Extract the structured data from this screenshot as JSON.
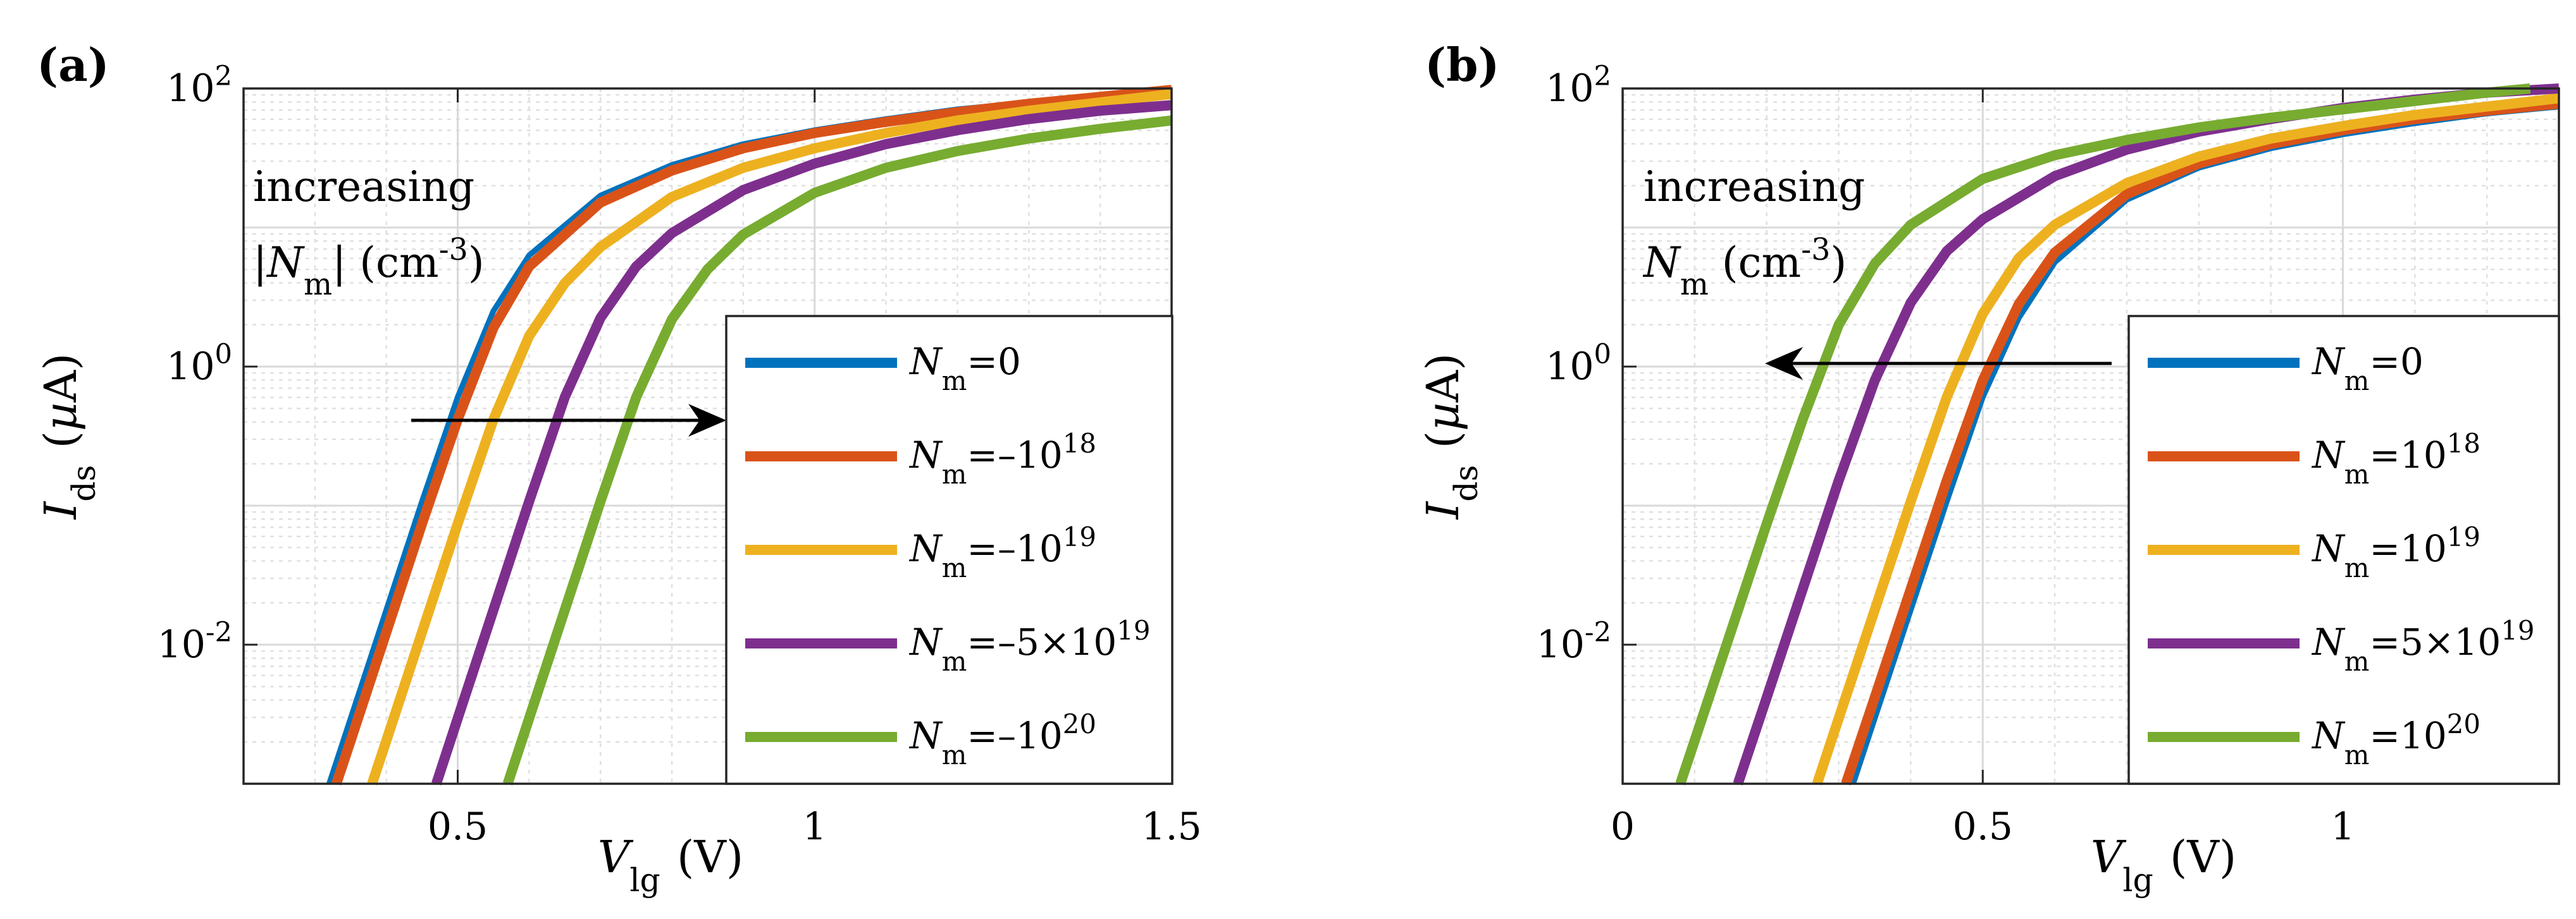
{
  "chart_data": [
    {
      "panel": "(a)",
      "type": "line",
      "title": "",
      "xlabel": "V_lg (V)",
      "ylabel": "I_ds (µA)",
      "xlim": [
        0.2,
        1.5
      ],
      "ylim_log10": [
        -3,
        2
      ],
      "y_scale": "log",
      "x_ticks": [
        0.5,
        1,
        1.5
      ],
      "x_tick_labels": [
        "0.5",
        "1",
        "1.5"
      ],
      "y_ticks_log10": [
        -2,
        0,
        2
      ],
      "grid": "major and minor",
      "legend_position": "bottom-right",
      "annotation": [
        "increasing",
        "|N",
        "m",
        "| (cm",
        "-3",
        ")"
      ],
      "arrow_direction": "right",
      "series": [
        {
          "name": "0",
          "color": "#0072BD",
          "x": [
            0.32,
            0.35,
            0.4,
            0.45,
            0.5,
            0.55,
            0.6,
            0.7,
            0.8,
            0.9,
            1.0,
            1.1,
            1.2,
            1.3,
            1.4,
            1.5
          ],
          "log10_y": [
            -3.0,
            -2.53,
            -1.75,
            -0.97,
            -0.22,
            0.4,
            0.8,
            1.23,
            1.45,
            1.6,
            1.7,
            1.78,
            1.85,
            1.9,
            1.95,
            2.0
          ]
        },
        {
          "name": "-10^18",
          "color": "#D95319",
          "x": [
            0.33,
            0.35,
            0.4,
            0.45,
            0.5,
            0.55,
            0.6,
            0.7,
            0.8,
            0.9,
            1.0,
            1.1,
            1.2,
            1.3,
            1.4,
            1.5
          ],
          "log10_y": [
            -3.0,
            -2.69,
            -1.91,
            -1.13,
            -0.38,
            0.28,
            0.72,
            1.18,
            1.41,
            1.57,
            1.68,
            1.76,
            1.83,
            1.89,
            1.94,
            1.99
          ]
        },
        {
          "name": "-10^19",
          "color": "#EDB120",
          "x": [
            0.38,
            0.4,
            0.45,
            0.5,
            0.55,
            0.6,
            0.65,
            0.7,
            0.8,
            0.9,
            1.0,
            1.1,
            1.2,
            1.3,
            1.4,
            1.5
          ],
          "log10_y": [
            -3.0,
            -2.69,
            -1.91,
            -1.13,
            -0.38,
            0.22,
            0.6,
            0.86,
            1.22,
            1.43,
            1.57,
            1.68,
            1.77,
            1.84,
            1.9,
            1.96
          ]
        },
        {
          "name": "-5×10^19",
          "color": "#7E2F8E",
          "x": [
            0.47,
            0.5,
            0.55,
            0.6,
            0.65,
            0.7,
            0.75,
            0.8,
            0.9,
            1.0,
            1.1,
            1.2,
            1.3,
            1.4,
            1.5
          ],
          "log10_y": [
            -3.0,
            -2.53,
            -1.75,
            -0.97,
            -0.22,
            0.35,
            0.72,
            0.96,
            1.27,
            1.46,
            1.6,
            1.7,
            1.78,
            1.84,
            1.88
          ]
        },
        {
          "name": "-10^20",
          "color": "#77AC30",
          "x": [
            0.57,
            0.6,
            0.65,
            0.7,
            0.75,
            0.8,
            0.85,
            0.9,
            1.0,
            1.1,
            1.2,
            1.3,
            1.4,
            1.5
          ],
          "log10_y": [
            -3.0,
            -2.53,
            -1.75,
            -0.97,
            -0.22,
            0.34,
            0.7,
            0.95,
            1.25,
            1.43,
            1.55,
            1.64,
            1.71,
            1.77
          ]
        }
      ]
    },
    {
      "panel": "(b)",
      "type": "line",
      "title": "",
      "xlabel": "V_lg (V)",
      "ylabel": "I_ds (µA)",
      "xlim": [
        0,
        1.3
      ],
      "ylim_log10": [
        -3,
        2
      ],
      "y_scale": "log",
      "x_ticks": [
        0,
        0.5,
        1
      ],
      "x_tick_labels": [
        "0",
        "0.5",
        "1"
      ],
      "y_ticks_log10": [
        -2,
        0,
        2
      ],
      "grid": "major and minor",
      "legend_position": "bottom-right",
      "annotation": [
        "increasing",
        "N",
        "m",
        " (cm",
        "-3",
        ")"
      ],
      "arrow_direction": "left",
      "series": [
        {
          "name": "0",
          "color": "#0072BD",
          "x": [
            0.32,
            0.35,
            0.4,
            0.45,
            0.5,
            0.55,
            0.6,
            0.7,
            0.8,
            0.9,
            1.0,
            1.1,
            1.2,
            1.3
          ],
          "log10_y": [
            -3.0,
            -2.53,
            -1.75,
            -0.97,
            -0.22,
            0.35,
            0.75,
            1.2,
            1.43,
            1.57,
            1.67,
            1.75,
            1.82,
            1.87
          ]
        },
        {
          "name": "10^18",
          "color": "#D95319",
          "x": [
            0.31,
            0.35,
            0.4,
            0.45,
            0.5,
            0.55,
            0.6,
            0.7,
            0.8,
            0.9,
            1.0,
            1.1,
            1.2,
            1.3
          ],
          "log10_y": [
            -3.0,
            -2.38,
            -1.6,
            -0.82,
            -0.1,
            0.45,
            0.82,
            1.24,
            1.46,
            1.6,
            1.7,
            1.78,
            1.84,
            1.89
          ]
        },
        {
          "name": "10^19",
          "color": "#EDB120",
          "x": [
            0.27,
            0.3,
            0.35,
            0.4,
            0.45,
            0.5,
            0.55,
            0.6,
            0.7,
            0.8,
            0.9,
            1.0,
            1.1,
            1.2,
            1.3
          ],
          "log10_y": [
            -3.0,
            -2.53,
            -1.75,
            -0.97,
            -0.22,
            0.38,
            0.78,
            1.02,
            1.32,
            1.51,
            1.64,
            1.73,
            1.81,
            1.87,
            1.93
          ]
        },
        {
          "name": "5×10^19",
          "color": "#7E2F8E",
          "x": [
            0.16,
            0.2,
            0.25,
            0.3,
            0.35,
            0.4,
            0.45,
            0.5,
            0.6,
            0.7,
            0.8,
            0.9,
            1.0,
            1.1,
            1.2,
            1.3
          ],
          "log10_y": [
            -3.0,
            -2.38,
            -1.6,
            -0.82,
            -0.1,
            0.46,
            0.83,
            1.06,
            1.37,
            1.56,
            1.69,
            1.78,
            1.86,
            1.92,
            1.97,
            2.0
          ]
        },
        {
          "name": "10^20",
          "color": "#77AC30",
          "x": [
            0.08,
            0.1,
            0.15,
            0.2,
            0.25,
            0.3,
            0.35,
            0.4,
            0.5,
            0.6,
            0.7,
            0.8,
            0.9,
            1.0,
            1.1,
            1.2,
            1.26
          ],
          "log10_y": [
            -3.0,
            -2.69,
            -1.91,
            -1.13,
            -0.38,
            0.3,
            0.74,
            1.02,
            1.35,
            1.52,
            1.63,
            1.72,
            1.79,
            1.85,
            1.91,
            1.97,
            2.0
          ]
        }
      ]
    }
  ]
}
